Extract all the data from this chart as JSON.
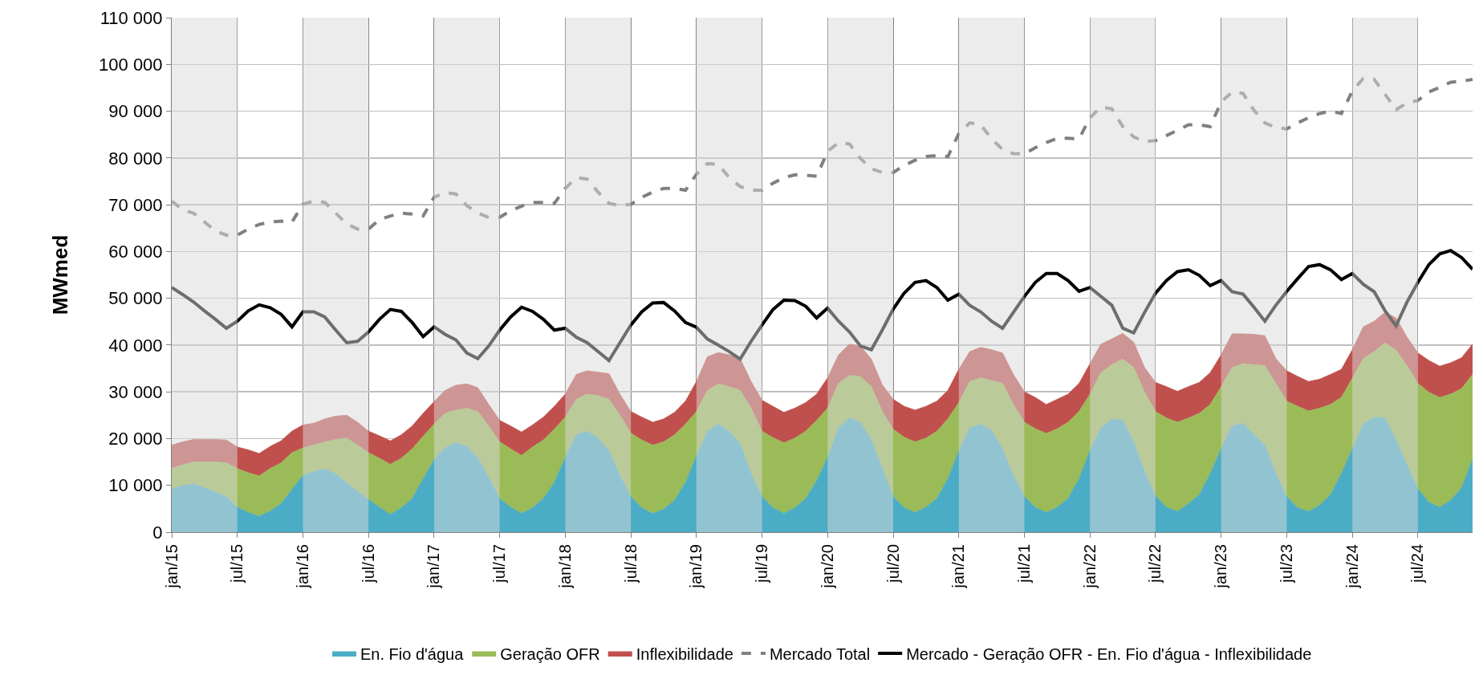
{
  "chart_data": {
    "type": "area",
    "stacked": true,
    "ylabel": "MWmed",
    "grid": true,
    "legend": "bottom",
    "categories": [
      "jan/15",
      null,
      null,
      null,
      null,
      null,
      "jul/15",
      null,
      null,
      null,
      null,
      null,
      "jan/16",
      null,
      null,
      null,
      null,
      null,
      "jul/16",
      null,
      null,
      null,
      null,
      null,
      "jan/17",
      null,
      null,
      null,
      null,
      null,
      "jul/17",
      null,
      null,
      null,
      null,
      null,
      "jan/18",
      null,
      null,
      null,
      null,
      null,
      "jul/18",
      null,
      null,
      null,
      null,
      null,
      "jan/19",
      null,
      null,
      null,
      null,
      null,
      "jul/19",
      null,
      null,
      null,
      null,
      null,
      "jan/20",
      null,
      null,
      null,
      null,
      null,
      "jul/20",
      null,
      null,
      null,
      null,
      null,
      "jan/21",
      null,
      null,
      null,
      null,
      null,
      "jul/21",
      null,
      null,
      null,
      null,
      null,
      "jan/22",
      null,
      null,
      null,
      null,
      null,
      "jul/22",
      null,
      null,
      null,
      null,
      null,
      "jan/23",
      null,
      null,
      null,
      null,
      null,
      "jul/23",
      null,
      null,
      null,
      null,
      null,
      "jan/24",
      null,
      null,
      null,
      null,
      null,
      "jul/24",
      null,
      null,
      null,
      null,
      null
    ],
    "ylim": [
      0,
      110000
    ],
    "yticks": [
      {
        "value": 0,
        "label": "0"
      },
      {
        "value": 10000,
        "label": "10 000"
      },
      {
        "value": 20000,
        "label": "20 000"
      },
      {
        "value": 30000,
        "label": "30 000"
      },
      {
        "value": 40000,
        "label": "40 000"
      },
      {
        "value": 50000,
        "label": "50 000"
      },
      {
        "value": 60000,
        "label": "60 000"
      },
      {
        "value": 70000,
        "label": "70 000"
      },
      {
        "value": 80000,
        "label": "80 000"
      },
      {
        "value": 90000,
        "label": "90 000"
      },
      {
        "value": 100000,
        "label": "100 000"
      },
      {
        "value": 110000,
        "label": "110 000"
      }
    ],
    "bands": [
      {
        "axis": "x",
        "from": "jan/15",
        "to": "jul/15",
        "color": "#d9d9d9"
      },
      {
        "axis": "x",
        "from": "jan/16",
        "to": "jul/16",
        "color": "#d9d9d9"
      },
      {
        "axis": "x",
        "from": "jan/17",
        "to": "jul/17",
        "color": "#d9d9d9"
      },
      {
        "axis": "x",
        "from": "jan/18",
        "to": "jul/18",
        "color": "#d9d9d9"
      },
      {
        "axis": "x",
        "from": "jan/19",
        "to": "jul/19",
        "color": "#d9d9d9"
      },
      {
        "axis": "x",
        "from": "jan/20",
        "to": "jul/20",
        "color": "#d9d9d9"
      },
      {
        "axis": "x",
        "from": "jan/21",
        "to": "jul/21",
        "color": "#d9d9d9"
      },
      {
        "axis": "x",
        "from": "jan/22",
        "to": "jul/22",
        "color": "#d9d9d9"
      },
      {
        "axis": "x",
        "from": "jan/23",
        "to": "jul/23",
        "color": "#d9d9d9"
      },
      {
        "axis": "x",
        "from": "jan/24",
        "to": "jul/24",
        "color": "#d9d9d9"
      }
    ],
    "series": [
      {
        "name": "En. Fio d'água",
        "color": "#4bacc6",
        "values": [
          9200,
          10000,
          10300,
          9500,
          8500,
          7600,
          5300,
          4200,
          3400,
          4500,
          6100,
          9100,
          12100,
          12900,
          13500,
          12500,
          10600,
          8700,
          7000,
          5300,
          3800,
          5200,
          7200,
          11400,
          15500,
          18000,
          19100,
          18300,
          15900,
          11700,
          7200,
          5300,
          4000,
          5200,
          7200,
          10600,
          15900,
          20800,
          21600,
          20100,
          17400,
          12100,
          7600,
          5200,
          4000,
          4900,
          6800,
          10600,
          16300,
          21600,
          23100,
          21600,
          18900,
          12500,
          7600,
          5200,
          4000,
          5200,
          7200,
          11000,
          16000,
          22300,
          24400,
          23500,
          19700,
          13600,
          7600,
          5200,
          4200,
          5300,
          7200,
          11400,
          17300,
          22300,
          23100,
          21800,
          17800,
          12100,
          7600,
          5300,
          4200,
          5300,
          7200,
          11400,
          17400,
          22300,
          24200,
          23900,
          19300,
          12900,
          7700,
          5300,
          4400,
          6100,
          8000,
          12500,
          17800,
          22700,
          23300,
          20800,
          18600,
          12500,
          7600,
          5200,
          4400,
          5700,
          8000,
          12500,
          17800,
          23100,
          24600,
          24400,
          19700,
          14400,
          9200,
          6400,
          5300,
          6800,
          9500,
          15500
        ]
      },
      {
        "name": "Geração OFR",
        "color": "#9bbb59",
        "values": [
          4400,
          4400,
          4700,
          5500,
          6500,
          7200,
          8300,
          8500,
          8600,
          9100,
          8700,
          7900,
          5900,
          5700,
          5800,
          7300,
          9500,
          9900,
          10000,
          10500,
          10700,
          10600,
          10600,
          9100,
          7600,
          7400,
          7000,
          8200,
          9900,
          11000,
          12100,
          12500,
          12400,
          13000,
          12500,
          11400,
          8700,
          7600,
          7900,
          9100,
          11000,
          12900,
          13600,
          14500,
          14600,
          14400,
          14000,
          12500,
          9500,
          8700,
          8600,
          9500,
          11400,
          14000,
          14000,
          15000,
          15100,
          14900,
          14400,
          12900,
          10500,
          9500,
          9100,
          9800,
          11400,
          12200,
          14400,
          15100,
          15100,
          14800,
          14400,
          12800,
          10400,
          9900,
          9900,
          10600,
          14000,
          15200,
          15900,
          16800,
          16900,
          16800,
          16300,
          14400,
          12100,
          11800,
          11600,
          13100,
          15900,
          17000,
          18100,
          19100,
          19100,
          18300,
          17400,
          14800,
          13300,
          12500,
          12700,
          15000,
          17000,
          19300,
          20400,
          21700,
          21500,
          20800,
          19300,
          16300,
          15100,
          14000,
          14000,
          16100,
          19200,
          21200,
          22600,
          23500,
          23500,
          22700,
          21200,
          18200
        ]
      },
      {
        "name": "Inflexibilidade",
        "color": "#c0504d",
        "values": [
          5000,
          4900,
          4800,
          4800,
          4800,
          4900,
          4600,
          4900,
          4800,
          4700,
          4700,
          4600,
          4900,
          4700,
          4900,
          5000,
          4900,
          4900,
          4600,
          4800,
          5000,
          5000,
          4900,
          4900,
          4800,
          4900,
          5300,
          5200,
          5100,
          4600,
          4600,
          4900,
          5000,
          4700,
          4900,
          4900,
          4900,
          5300,
          5000,
          5000,
          5500,
          4500,
          4600,
          4900,
          4900,
          4900,
          4800,
          4900,
          6400,
          7200,
          6700,
          6800,
          6800,
          5700,
          6600,
          6700,
          6500,
          6400,
          6100,
          5600,
          6500,
          6100,
          6700,
          6500,
          5900,
          5700,
          6400,
          6600,
          6800,
          6800,
          6400,
          6100,
          7100,
          6400,
          6500,
          6600,
          6500,
          6400,
          6500,
          6700,
          6200,
          6300,
          6000,
          6000,
          6500,
          6100,
          5500,
          5500,
          5400,
          5300,
          6200,
          6700,
          6600,
          6700,
          6600,
          6800,
          6800,
          7200,
          6400,
          6500,
          6400,
          5300,
          6500,
          6400,
          6300,
          6200,
          6400,
          6000,
          6100,
          6800,
          6500,
          6500,
          6900,
          6100,
          6500,
          6800,
          6700,
          6700,
          6600,
          6500
        ]
      },
      {
        "name": "Mercado Total",
        "type": "line",
        "line_style": "dashed",
        "color": "#808080",
        "values": [
          70800,
          68900,
          68200,
          66300,
          64400,
          63500,
          63500,
          64800,
          65800,
          66300,
          66500,
          66300,
          70100,
          70800,
          70500,
          68200,
          65900,
          64800,
          64800,
          66800,
          67600,
          68200,
          68000,
          67600,
          71600,
          72600,
          72300,
          69800,
          68200,
          67300,
          67300,
          68700,
          69700,
          70500,
          70500,
          70300,
          73500,
          75800,
          75500,
          72700,
          70300,
          69800,
          70100,
          71600,
          72700,
          73500,
          73500,
          73100,
          76500,
          78800,
          78600,
          75800,
          73900,
          73100,
          73100,
          74600,
          75800,
          76400,
          76300,
          76100,
          81400,
          83300,
          83000,
          79900,
          77700,
          76900,
          76900,
          78400,
          79500,
          80300,
          80500,
          80300,
          85200,
          87500,
          87100,
          84100,
          81800,
          80900,
          80900,
          82200,
          83300,
          84200,
          84200,
          84100,
          88600,
          90900,
          90500,
          86700,
          84500,
          83500,
          83700,
          84800,
          85900,
          87100,
          87100,
          86700,
          92000,
          94100,
          93800,
          90200,
          87500,
          86500,
          86200,
          87500,
          88600,
          89500,
          90000,
          89500,
          94300,
          97000,
          96800,
          93600,
          90300,
          91800,
          92300,
          94100,
          95100,
          96200,
          96400,
          96800
        ]
      },
      {
        "name": "Mercado - Geração OFR - En. Fio d'água - Inflexibilidade",
        "type": "line",
        "line_style": "solid",
        "color": "#000000",
        "values": [
          52300,
          50800,
          49200,
          47300,
          45500,
          43600,
          45100,
          47300,
          48600,
          48000,
          46600,
          43900,
          47100,
          47100,
          46000,
          43200,
          40500,
          40800,
          42800,
          45500,
          47600,
          47200,
          44800,
          41800,
          43900,
          42300,
          41100,
          38300,
          37100,
          39800,
          43200,
          46000,
          48100,
          47200,
          45500,
          43200,
          43600,
          41700,
          40500,
          38600,
          36700,
          40500,
          44300,
          47100,
          49000,
          49100,
          47300,
          44800,
          43800,
          41300,
          40000,
          38600,
          37000,
          40800,
          44300,
          47600,
          49600,
          49500,
          48300,
          45800,
          47900,
          45100,
          42800,
          39800,
          39000,
          43200,
          47700,
          51100,
          53400,
          53800,
          52300,
          49600,
          50900,
          48500,
          47100,
          45100,
          43600,
          47000,
          50400,
          53400,
          55300,
          55300,
          53800,
          51500,
          52300,
          50400,
          48500,
          43600,
          42600,
          47000,
          51100,
          53800,
          55700,
          56100,
          54900,
          52700,
          53800,
          51400,
          50900,
          48100,
          45100,
          48500,
          51500,
          54200,
          56800,
          57200,
          56100,
          54000,
          55300,
          53000,
          51400,
          47300,
          44100,
          49200,
          53400,
          57200,
          59500,
          60200,
          58700,
          56200
        ]
      }
    ]
  }
}
